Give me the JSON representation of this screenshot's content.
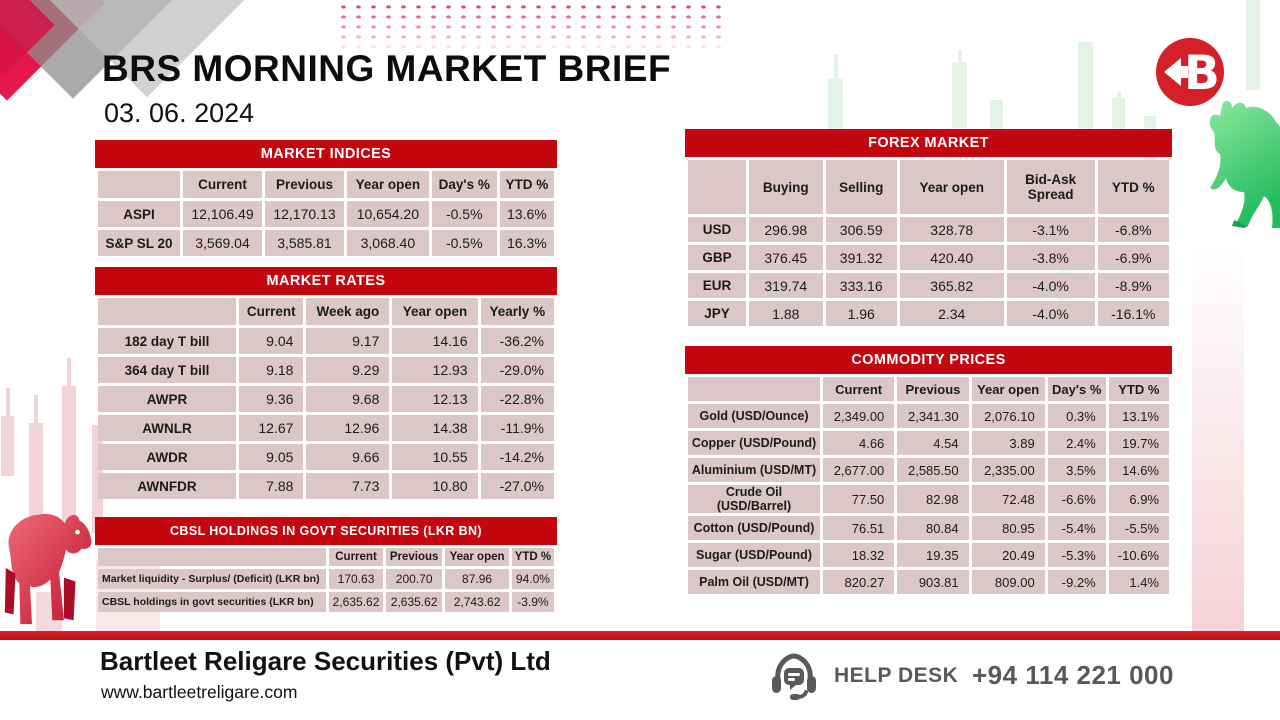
{
  "header": {
    "title": "BRS MORNING MARKET BRIEF",
    "date": "03. 06. 2024"
  },
  "tables": {
    "market_indices": {
      "title": "MARKET INDICES",
      "columns": [
        "",
        "Current",
        "Previous",
        "Year open",
        "Day's %",
        "YTD %"
      ],
      "rows": [
        {
          "label": "ASPI",
          "values": [
            "12,106.49",
            "12,170.13",
            "10,654.20",
            "-0.5%",
            "13.6%"
          ]
        },
        {
          "label": "S&P SL 20",
          "values": [
            "3,569.04",
            "3,585.81",
            "3,068.40",
            "-0.5%",
            "16.3%"
          ]
        }
      ]
    },
    "market_rates": {
      "title": "MARKET RATES",
      "columns": [
        "",
        "Current",
        "Week ago",
        "Year open",
        "Yearly %"
      ],
      "rows": [
        {
          "label": "182 day T bill",
          "values": [
            "9.04",
            "9.17",
            "14.16",
            "-36.2%"
          ]
        },
        {
          "label": "364 day T bill",
          "values": [
            "9.18",
            "9.29",
            "12.93",
            "-29.0%"
          ]
        },
        {
          "label": "AWPR",
          "values": [
            "9.36",
            "9.68",
            "12.13",
            "-22.8%"
          ]
        },
        {
          "label": "AWNLR",
          "values": [
            "12.67",
            "12.96",
            "14.38",
            "-11.9%"
          ]
        },
        {
          "label": "AWDR",
          "values": [
            "9.05",
            "9.66",
            "10.55",
            "-14.2%"
          ]
        },
        {
          "label": "AWNFDR",
          "values": [
            "7.88",
            "7.73",
            "10.80",
            "-27.0%"
          ]
        }
      ]
    },
    "cbsl_holdings": {
      "title": "CBSL HOLDINGS IN GOVT SECURITIES (LKR BN)",
      "columns": [
        "",
        "Current",
        "Previous",
        "Year open",
        "YTD %"
      ],
      "rows": [
        {
          "label": "Market liquidity - Surplus/ (Deficit) (LKR bn)",
          "values": [
            "170.63",
            "200.70",
            "87.96",
            "94.0%"
          ]
        },
        {
          "label": "CBSL holdings in govt securities (LKR bn)",
          "values": [
            "2,635.62",
            "2,635.62",
            "2,743.62",
            "-3.9%"
          ]
        }
      ]
    },
    "forex": {
      "title": "FOREX MARKET",
      "columns": [
        "",
        "Buying",
        "Selling",
        "Year open",
        "Bid-Ask Spread",
        "YTD %"
      ],
      "rows": [
        {
          "label": "USD",
          "values": [
            "296.98",
            "306.59",
            "328.78",
            "-3.1%",
            "-6.8%"
          ]
        },
        {
          "label": "GBP",
          "values": [
            "376.45",
            "391.32",
            "420.40",
            "-3.8%",
            "-6.9%"
          ]
        },
        {
          "label": "EUR",
          "values": [
            "319.74",
            "333.16",
            "365.82",
            "-4.0%",
            "-8.9%"
          ]
        },
        {
          "label": "JPY",
          "values": [
            "1.88",
            "1.96",
            "2.34",
            "-4.0%",
            "-16.1%"
          ]
        }
      ]
    },
    "commodities": {
      "title": "COMMODITY PRICES",
      "columns": [
        "",
        "Current",
        "Previous",
        "Year open",
        "Day's %",
        "YTD %"
      ],
      "rows": [
        {
          "label": "Gold (USD/Ounce)",
          "values": [
            "2,349.00",
            "2,341.30",
            "2,076.10",
            "0.3%",
            "13.1%"
          ]
        },
        {
          "label": "Copper (USD/Pound)",
          "values": [
            "4.66",
            "4.54",
            "3.89",
            "2.4%",
            "19.7%"
          ]
        },
        {
          "label": "Aluminium (USD/MT)",
          "values": [
            "2,677.00",
            "2,585.50",
            "2,335.00",
            "3.5%",
            "14.6%"
          ]
        },
        {
          "label": "Crude Oil (USD/Barrel)",
          "values": [
            "77.50",
            "82.98",
            "72.48",
            "-6.6%",
            "6.9%"
          ]
        },
        {
          "label": "Cotton (USD/Pound)",
          "values": [
            "76.51",
            "80.84",
            "80.95",
            "-5.4%",
            "-5.5%"
          ]
        },
        {
          "label": "Sugar (USD/Pound)",
          "values": [
            "18.32",
            "19.35",
            "20.49",
            "-5.3%",
            "-10.6%"
          ]
        },
        {
          "label": "Palm Oil (USD/MT)",
          "values": [
            "820.27",
            "903.81",
            "809.00",
            "-9.2%",
            "1.4%"
          ]
        }
      ]
    }
  },
  "footer": {
    "company": "Bartleet Religare Securities (Pvt) Ltd",
    "website": "www.bartleetreligare.com",
    "help_label": "HELP DESK",
    "phone": "+94 114 221 000"
  },
  "icons": {
    "logo": "b-arrow-logo",
    "help": "headset-icon",
    "bull": "bull-silhouette",
    "bear": "bear-silhouette"
  },
  "colors": {
    "accent_red": "#C4060F",
    "cell_bg": "#DBC7C7",
    "logo_red": "#D5202A",
    "bull_green": "#3FCD6C",
    "bear_red": "#D93A52",
    "footer_gray": "#58595B"
  }
}
